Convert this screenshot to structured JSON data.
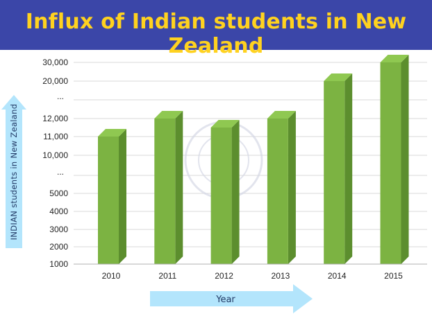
{
  "title": "Influx of Indian students in New Zealand",
  "colors": {
    "title_bg": "#3b46a8",
    "title_text": "#ffd21f",
    "bar_front": "#7cb342",
    "bar_side": "#5c8e2e",
    "bar_top": "#8fc851",
    "arrow": "#b3e5fc",
    "watermark": "#d5d8e6"
  },
  "chart_data": {
    "type": "bar",
    "title": "Influx of Indian students in New Zealand",
    "xlabel": "Year",
    "ylabel": "INDIAN students in New Zealand",
    "categories": [
      "2010",
      "2011",
      "2012",
      "2013",
      "2014",
      "2015"
    ],
    "values": [
      11000,
      12000,
      11500,
      12000,
      20000,
      30000
    ],
    "y_tick_labels": [
      "1000",
      "2000",
      "3000",
      "4000",
      "5000",
      "...",
      "10,000",
      "11,000",
      "12,000",
      "...",
      "20,000",
      "30,000"
    ],
    "y_axis_scale": "non-linear (broken) axis",
    "grid": true,
    "legend": "none"
  }
}
